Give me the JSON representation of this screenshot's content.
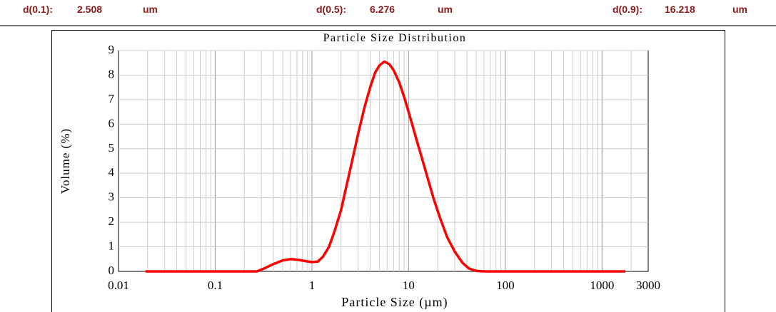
{
  "stats": [
    {
      "label": "d(0.1):",
      "value": "2.508",
      "unit": "um"
    },
    {
      "label": "d(0.5):",
      "value": "6.276",
      "unit": "um"
    },
    {
      "label": "d(0.9):",
      "value": "16.218",
      "unit": "um"
    }
  ],
  "chart_data": {
    "type": "line",
    "title": "Particle Size Distribution",
    "xlabel": "Particle Size (µm)",
    "ylabel": "Volume (%)",
    "xscale": "log",
    "xlim": [
      0.01,
      3000
    ],
    "ylim": [
      0,
      9
    ],
    "xticks": [
      "0.01",
      "0.1",
      "1",
      "10",
      "100",
      "1000",
      "3000"
    ],
    "xtick_values": [
      0.01,
      0.1,
      1,
      10,
      100,
      1000,
      3000
    ],
    "yticks": [
      "0",
      "1",
      "2",
      "3",
      "4",
      "5",
      "6",
      "7",
      "8",
      "9"
    ],
    "grid": true,
    "color": "#ff0000",
    "series": [
      {
        "name": "Volume",
        "x": [
          0.019,
          0.1,
          0.27,
          0.32,
          0.4,
          0.5,
          0.6,
          0.7,
          0.85,
          1.0,
          1.15,
          1.3,
          1.5,
          1.7,
          2.0,
          2.5,
          3.0,
          3.5,
          4.0,
          4.5,
          5.0,
          5.6,
          6.3,
          7.0,
          8.0,
          9.0,
          10.5,
          12,
          14,
          16,
          18,
          21,
          25,
          30,
          36,
          42,
          50,
          60,
          100,
          1000,
          1740
        ],
        "y": [
          0,
          0,
          0,
          0.12,
          0.3,
          0.45,
          0.5,
          0.48,
          0.42,
          0.38,
          0.4,
          0.6,
          1.0,
          1.6,
          2.5,
          4.2,
          5.6,
          6.7,
          7.5,
          8.1,
          8.4,
          8.55,
          8.45,
          8.2,
          7.7,
          7.1,
          6.2,
          5.4,
          4.5,
          3.7,
          3.0,
          2.2,
          1.4,
          0.8,
          0.35,
          0.12,
          0.02,
          0,
          0,
          0,
          0
        ]
      }
    ]
  }
}
